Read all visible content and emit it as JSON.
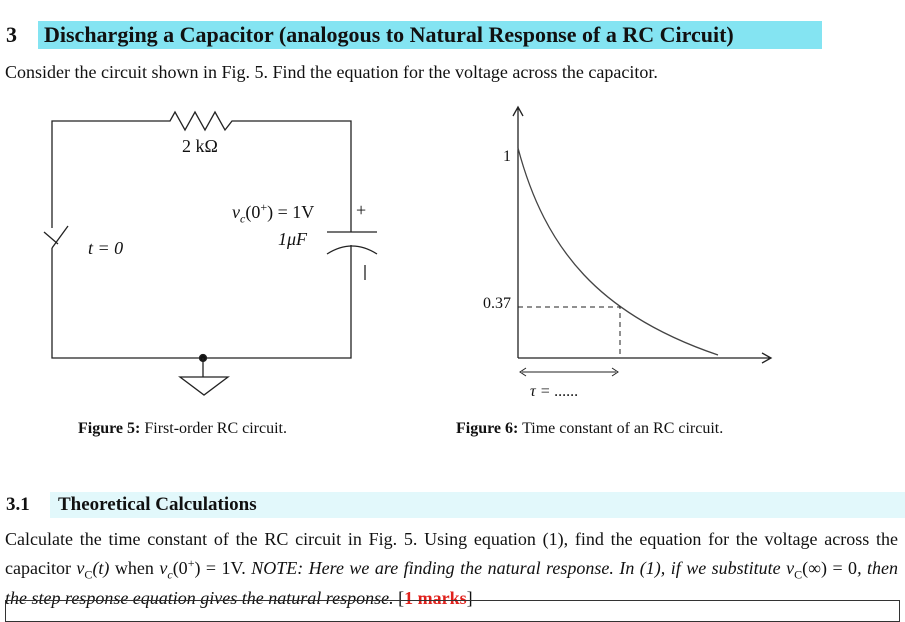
{
  "section": {
    "number": "3",
    "title": "Discharging a Capacitor (analogous to Natural Response of a RC Circuit)"
  },
  "intro": "Consider the circuit shown in Fig. 5. Find the equation for the voltage across the capacitor.",
  "figure5": {
    "resistor": "2 kΩ",
    "vc0": [
      "v",
      "c",
      "(0",
      "+",
      ") = 1V"
    ],
    "plus": "+",
    "capacitor": "1μF",
    "switch": "t = 0",
    "caption_label": "Figure 5:",
    "caption": "First-order RC circuit."
  },
  "figure6": {
    "y_top": "1",
    "y_mark": "0.37",
    "tau": "τ = ......",
    "caption_label": "Figure 6:",
    "caption": "Time constant of an RC circuit."
  },
  "subsection": {
    "number": "3.1",
    "title": "Theoretical Calculations"
  },
  "paragraph": {
    "text1": "Calculate the time constant of the RC circuit in Fig. 5. Using equation (1), find the equation for the voltage across the capacitor ",
    "vC_t": [
      "v",
      "C",
      "(t)"
    ],
    "text2": " when ",
    "vc0": [
      "v",
      "c",
      "(0",
      "+",
      ") = 1V"
    ],
    "text3": ". ",
    "note1": "NOTE: Here we are finding the natural response. In (1), if we substitute ",
    "vC_inf": [
      "v",
      "C",
      "(∞) = 0"
    ],
    "note2": ", then the step response equation gives the natural response.",
    "mark_open": " [",
    "marks": "1 marks",
    "mark_close": "]"
  }
}
